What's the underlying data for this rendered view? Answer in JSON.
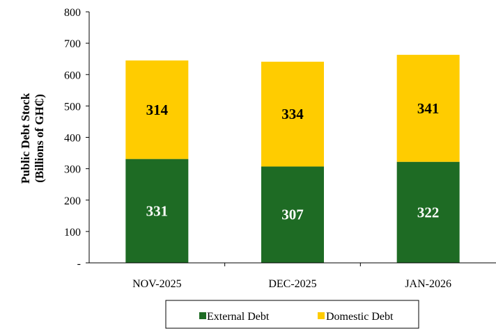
{
  "chart_data": {
    "type": "bar",
    "stacked": true,
    "categories": [
      "NOV-2025",
      "DEC-2025",
      "JAN-2026"
    ],
    "series": [
      {
        "name": "External Debt",
        "values": [
          331,
          307,
          322
        ],
        "color": "#1E6B24",
        "label_color": "#ffffff"
      },
      {
        "name": "Domestic Debt",
        "values": [
          314,
          334,
          341
        ],
        "color": "#FFCC00",
        "label_color": "#000000"
      }
    ],
    "ylabel_line1": "Public Debt Stock",
    "ylabel_line2": "(Billions of GH₵)",
    "ylim": [
      0,
      800
    ],
    "yticks": [
      {
        "value": 0,
        "label": "-"
      },
      {
        "value": 100,
        "label": "100"
      },
      {
        "value": 200,
        "label": "200"
      },
      {
        "value": 300,
        "label": "300"
      },
      {
        "value": 400,
        "label": "400"
      },
      {
        "value": 500,
        "label": "500"
      },
      {
        "value": 600,
        "label": "600"
      },
      {
        "value": 700,
        "label": "700"
      },
      {
        "value": 800,
        "label": "800"
      }
    ],
    "grid": false,
    "legend_position": "bottom"
  }
}
